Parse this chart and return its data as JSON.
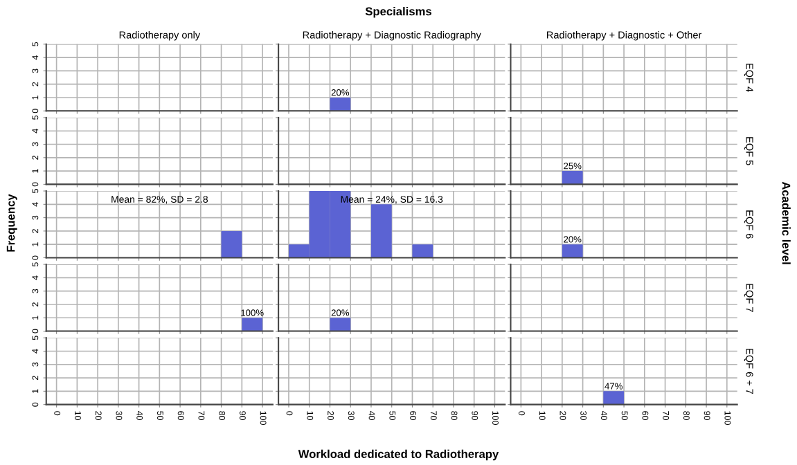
{
  "chart_data": [
    {
      "type": "histogram",
      "title": "Radiotherapy only",
      "color": "#5b63d3",
      "xlim": [
        -5,
        105
      ],
      "ylim": [
        0,
        5
      ],
      "xticks": [
        0,
        10,
        20,
        30,
        40,
        50,
        60,
        70,
        80,
        90,
        100
      ],
      "yticks": [
        0,
        1,
        2,
        3,
        4,
        5
      ],
      "grid": true,
      "tick_labels": "y"
    },
    {
      "type": "histogram",
      "title": "Radiotherapy + Diagnostic Radiography",
      "bins": [
        0,
        10,
        20,
        30,
        40,
        50,
        60,
        70,
        80,
        90,
        100
      ],
      "values": [
        0,
        0,
        1,
        0,
        0,
        0,
        0,
        0,
        0,
        0
      ],
      "annotations": [
        {
          "text": "20%",
          "x": 25,
          "y": 1
        }
      ],
      "color": "#5b63d3",
      "xlim": [
        -5,
        105
      ],
      "ylim": [
        0,
        5
      ],
      "xticks": [
        0,
        10,
        20,
        30,
        40,
        50,
        60,
        70,
        80,
        90,
        100
      ],
      "yticks": [
        0,
        1,
        2,
        3,
        4,
        5
      ],
      "grid": true,
      "tick_labels": false
    },
    {
      "type": "histogram",
      "title": "Radiotherapy + Diagnostic + Other",
      "y2label": "EQF 4",
      "color": "#5b63d3",
      "xlim": [
        -5,
        105
      ],
      "ylim": [
        0,
        5
      ],
      "xticks": [
        0,
        10,
        20,
        30,
        40,
        50,
        60,
        70,
        80,
        90,
        100
      ],
      "yticks": [
        0,
        1,
        2,
        3,
        4,
        5
      ],
      "grid": true,
      "tick_labels": false
    },
    {
      "type": "histogram",
      "color": "#5b63d3",
      "xlim": [
        -5,
        105
      ],
      "ylim": [
        0,
        5
      ],
      "xticks": [
        0,
        10,
        20,
        30,
        40,
        50,
        60,
        70,
        80,
        90,
        100
      ],
      "yticks": [
        0,
        1,
        2,
        3,
        4,
        5
      ],
      "grid": true,
      "tick_labels": "y"
    },
    {
      "type": "histogram",
      "color": "#5b63d3",
      "xlim": [
        -5,
        105
      ],
      "ylim": [
        0,
        5
      ],
      "xticks": [
        0,
        10,
        20,
        30,
        40,
        50,
        60,
        70,
        80,
        90,
        100
      ],
      "yticks": [
        0,
        1,
        2,
        3,
        4,
        5
      ],
      "grid": true,
      "tick_labels": false
    },
    {
      "type": "histogram",
      "y2label": "EQF 5",
      "bins": [
        0,
        10,
        20,
        30,
        40,
        50,
        60,
        70,
        80,
        90,
        100
      ],
      "values": [
        0,
        0,
        1,
        0,
        0,
        0,
        0,
        0,
        0,
        0
      ],
      "annotations": [
        {
          "text": "25%",
          "x": 25,
          "y": 1
        }
      ],
      "color": "#5b63d3",
      "xlim": [
        -5,
        105
      ],
      "ylim": [
        0,
        5
      ],
      "xticks": [
        0,
        10,
        20,
        30,
        40,
        50,
        60,
        70,
        80,
        90,
        100
      ],
      "yticks": [
        0,
        1,
        2,
        3,
        4,
        5
      ],
      "grid": true,
      "tick_labels": false
    },
    {
      "type": "histogram",
      "annotations": [
        "Mean = 82%, SD = 2.8"
      ],
      "bins": [
        0,
        10,
        20,
        30,
        40,
        50,
        60,
        70,
        80,
        90,
        100
      ],
      "values": [
        0,
        0,
        0,
        0,
        0,
        0,
        0,
        0,
        2,
        0
      ],
      "color": "#5b63d3",
      "xlim": [
        -5,
        105
      ],
      "ylim": [
        0,
        5
      ],
      "xticks": [
        0,
        10,
        20,
        30,
        40,
        50,
        60,
        70,
        80,
        90,
        100
      ],
      "yticks": [
        0,
        1,
        2,
        3,
        4,
        5
      ],
      "grid": true,
      "tick_labels": "y"
    },
    {
      "type": "histogram",
      "annotations": [
        "Mean = 24%, SD = 16.3"
      ],
      "bins": [
        0,
        10,
        20,
        30,
        40,
        50,
        60,
        70,
        80,
        90,
        100
      ],
      "values": [
        1,
        5,
        5,
        0,
        4,
        0,
        1,
        0,
        0,
        0
      ],
      "color": "#5b63d3",
      "xlim": [
        -5,
        105
      ],
      "ylim": [
        0,
        5
      ],
      "xticks": [
        0,
        10,
        20,
        30,
        40,
        50,
        60,
        70,
        80,
        90,
        100
      ],
      "yticks": [
        0,
        1,
        2,
        3,
        4,
        5
      ],
      "grid": true,
      "tick_labels": false
    },
    {
      "type": "histogram",
      "y2label": "EQF 6",
      "bins": [
        0,
        10,
        20,
        30,
        40,
        50,
        60,
        70,
        80,
        90,
        100
      ],
      "values": [
        0,
        0,
        1,
        0,
        0,
        0,
        0,
        0,
        0,
        0
      ],
      "annotations": [
        {
          "text": "20%",
          "x": 25,
          "y": 1
        }
      ],
      "color": "#5b63d3",
      "xlim": [
        -5,
        105
      ],
      "ylim": [
        0,
        5
      ],
      "xticks": [
        0,
        10,
        20,
        30,
        40,
        50,
        60,
        70,
        80,
        90,
        100
      ],
      "yticks": [
        0,
        1,
        2,
        3,
        4,
        5
      ],
      "grid": true,
      "tick_labels": false
    },
    {
      "type": "histogram",
      "bins": [
        0,
        10,
        20,
        30,
        40,
        50,
        60,
        70,
        80,
        90,
        100
      ],
      "values": [
        0,
        0,
        0,
        0,
        0,
        0,
        0,
        0,
        0,
        1
      ],
      "annotations": [
        {
          "text": "100%",
          "x": 95,
          "y": 1
        }
      ],
      "color": "#5b63d3",
      "xlim": [
        -5,
        105
      ],
      "ylim": [
        0,
        5
      ],
      "xticks": [
        0,
        10,
        20,
        30,
        40,
        50,
        60,
        70,
        80,
        90,
        100
      ],
      "yticks": [
        0,
        1,
        2,
        3,
        4,
        5
      ],
      "grid": true,
      "tick_labels": "y"
    },
    {
      "type": "histogram",
      "bins": [
        0,
        10,
        20,
        30,
        40,
        50,
        60,
        70,
        80,
        90,
        100
      ],
      "values": [
        0,
        0,
        1,
        0,
        0,
        0,
        0,
        0,
        0,
        0
      ],
      "annotations": [
        {
          "text": "20%",
          "x": 25,
          "y": 1
        }
      ],
      "color": "#5b63d3",
      "xlim": [
        -5,
        105
      ],
      "ylim": [
        0,
        5
      ],
      "xticks": [
        0,
        10,
        20,
        30,
        40,
        50,
        60,
        70,
        80,
        90,
        100
      ],
      "yticks": [
        0,
        1,
        2,
        3,
        4,
        5
      ],
      "grid": true,
      "tick_labels": false
    },
    {
      "type": "histogram",
      "y2label": "EQF 7",
      "color": "#5b63d3",
      "xlim": [
        -5,
        105
      ],
      "ylim": [
        0,
        5
      ],
      "xticks": [
        0,
        10,
        20,
        30,
        40,
        50,
        60,
        70,
        80,
        90,
        100
      ],
      "yticks": [
        0,
        1,
        2,
        3,
        4,
        5
      ],
      "grid": true,
      "tick_labels": false
    },
    {
      "type": "histogram",
      "color": "#5b63d3",
      "xlim": [
        -5,
        105
      ],
      "ylim": [
        0,
        5
      ],
      "xticks": [
        0,
        10,
        20,
        30,
        40,
        50,
        60,
        70,
        80,
        90,
        100
      ],
      "yticks": [
        0,
        1,
        2,
        3,
        4,
        5
      ],
      "grid": true
    },
    {
      "type": "histogram",
      "color": "#5b63d3",
      "xlim": [
        -5,
        105
      ],
      "ylim": [
        0,
        5
      ],
      "xticks": [
        0,
        10,
        20,
        30,
        40,
        50,
        60,
        70,
        80,
        90,
        100
      ],
      "yticks": [
        0,
        1,
        2,
        3,
        4,
        5
      ],
      "grid": true,
      "tick_labels": "x"
    },
    {
      "type": "histogram",
      "y2label": "EQF 6 + 7",
      "bins": [
        0,
        10,
        20,
        30,
        40,
        50,
        60,
        70,
        80,
        90,
        100
      ],
      "values": [
        0,
        0,
        0,
        0,
        1,
        0,
        0,
        0,
        0,
        0
      ],
      "annotations": [
        {
          "text": "47%",
          "x": 45,
          "y": 1
        }
      ],
      "color": "#5b63d3",
      "xlim": [
        -5,
        105
      ],
      "ylim": [
        0,
        5
      ],
      "xticks": [
        0,
        10,
        20,
        30,
        40,
        50,
        60,
        70,
        80,
        90,
        100
      ],
      "yticks": [
        0,
        1,
        2,
        3,
        4,
        5
      ],
      "grid": true,
      "tick_labels": "x"
    },
    {
      "type": "other",
      "title": "Specialisms",
      "xlabel": "Workload dedicated to Radiotherapy",
      "ylabel": "Frequency",
      "y2label": "Academic level"
    }
  ]
}
